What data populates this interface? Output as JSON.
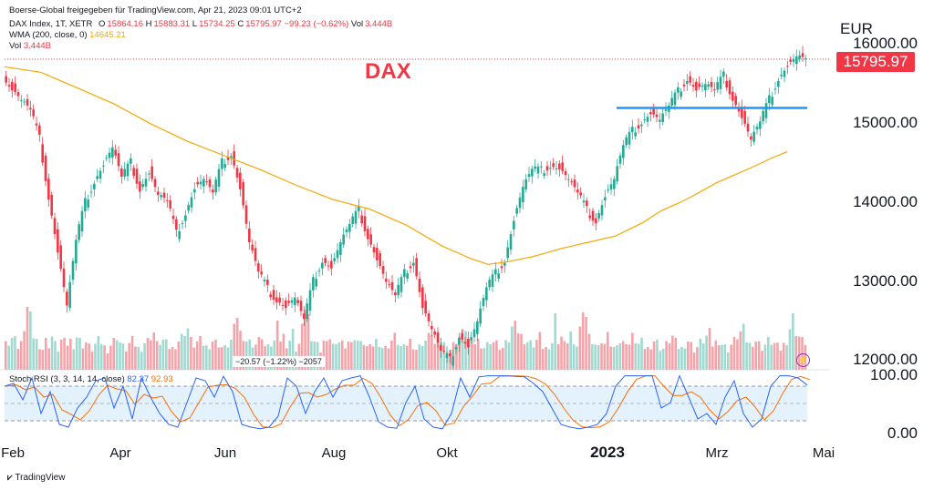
{
  "header": {
    "line1_prefix": "Boerse-Global freigegeben für TradingView.com, Apr 21, 2023 09:01 UTC+2",
    "symbol": "DAX Index, 1T, XETR",
    "o_label": "O",
    "o_value": "15864.16",
    "h_label": "H",
    "h_value": "15883.31",
    "l_label": "L",
    "l_value": "15734.25",
    "c_label": "C",
    "c_value": "15795.97",
    "change": "−99.23 (−0.62%)",
    "vol_label": "Vol",
    "vol_value": "3.444B",
    "wma_label": "WMA (200, close, 0)",
    "wma_value": "14645.21",
    "vol2_label": "Vol",
    "vol2_value": "3.444B",
    "stoch_label": "Stoch RSI (3, 3, 14, 14, close)",
    "stoch_k": "82.37",
    "stoch_d": "92.93"
  },
  "title_text": "DAX",
  "currency": "EUR",
  "price_tag": "15795.97",
  "hover_box": "−20.57 (−1.22%) −2057",
  "tv_logo": "TradingView",
  "colors": {
    "up": "#22ab94",
    "down": "#f23645",
    "wma": "#f7a600",
    "k": "#2962ff",
    "d": "#ff6d00",
    "hline": "#2196f3"
  },
  "icons": {
    "flash": "lightning-icon",
    "logo": "tradingview-logo-icon"
  },
  "chart_data": {
    "type": "candlestick",
    "price_axis_ticks": [
      "16000.00",
      "15000.00",
      "14000.00",
      "13000.00",
      "12000.00"
    ],
    "price_tick_values": [
      16000,
      15000,
      14000,
      13000,
      12000
    ],
    "rsi_axis_ticks": [
      "100.00",
      "0.00"
    ],
    "x_tick_labels": [
      "Feb",
      "Apr",
      "Jun",
      "Aug",
      "Okt",
      "2023",
      "Mrz",
      "Mai"
    ],
    "price_range": [
      11900,
      16300
    ],
    "last_close": 15795.97,
    "horizontal_line": 15200,
    "wma200_path": [
      [
        0,
        15720
      ],
      [
        40,
        15650
      ],
      [
        80,
        15450
      ],
      [
        120,
        15250
      ],
      [
        160,
        15000
      ],
      [
        200,
        14780
      ],
      [
        240,
        14600
      ],
      [
        280,
        14420
      ],
      [
        320,
        14220
      ],
      [
        360,
        14040
      ],
      [
        400,
        13920
      ],
      [
        440,
        13720
      ],
      [
        480,
        13450
      ],
      [
        510,
        13300
      ],
      [
        530,
        13220
      ],
      [
        550,
        13250
      ],
      [
        580,
        13320
      ],
      [
        610,
        13420
      ],
      [
        640,
        13500
      ],
      [
        670,
        13580
      ],
      [
        700,
        13750
      ],
      [
        720,
        13900
      ],
      [
        740,
        14000
      ],
      [
        760,
        14120
      ],
      [
        780,
        14250
      ],
      [
        800,
        14350
      ],
      [
        820,
        14450
      ],
      [
        840,
        14560
      ],
      [
        858,
        14645
      ]
    ],
    "price_path": [
      [
        0,
        15600
      ],
      [
        10,
        15450
      ],
      [
        20,
        15300
      ],
      [
        30,
        15150
      ],
      [
        40,
        14800
      ],
      [
        50,
        14100
      ],
      [
        60,
        13400
      ],
      [
        70,
        12700
      ],
      [
        80,
        13500
      ],
      [
        90,
        14000
      ],
      [
        100,
        14300
      ],
      [
        110,
        14500
      ],
      [
        120,
        14700
      ],
      [
        130,
        14300
      ],
      [
        140,
        14500
      ],
      [
        150,
        14200
      ],
      [
        160,
        14400
      ],
      [
        170,
        14100
      ],
      [
        180,
        14000
      ],
      [
        190,
        13600
      ],
      [
        200,
        13900
      ],
      [
        210,
        14200
      ],
      [
        220,
        14300
      ],
      [
        230,
        14100
      ],
      [
        240,
        14500
      ],
      [
        250,
        14650
      ],
      [
        260,
        14200
      ],
      [
        270,
        13500
      ],
      [
        280,
        13100
      ],
      [
        290,
        12900
      ],
      [
        300,
        12800
      ],
      [
        310,
        12700
      ],
      [
        320,
        12800
      ],
      [
        330,
        12500
      ],
      [
        340,
        13000
      ],
      [
        350,
        13300
      ],
      [
        360,
        13200
      ],
      [
        370,
        13500
      ],
      [
        380,
        13700
      ],
      [
        390,
        13900
      ],
      [
        400,
        13600
      ],
      [
        410,
        13300
      ],
      [
        420,
        13000
      ],
      [
        430,
        12800
      ],
      [
        440,
        13100
      ],
      [
        450,
        13300
      ],
      [
        460,
        12700
      ],
      [
        470,
        12400
      ],
      [
        480,
        12100
      ],
      [
        490,
        12000
      ],
      [
        500,
        12350
      ],
      [
        510,
        12200
      ],
      [
        520,
        12500
      ],
      [
        530,
        12900
      ],
      [
        540,
        13100
      ],
      [
        550,
        13300
      ],
      [
        560,
        13800
      ],
      [
        570,
        14200
      ],
      [
        580,
        14400
      ],
      [
        590,
        14400
      ],
      [
        600,
        14500
      ],
      [
        610,
        14450
      ],
      [
        620,
        14300
      ],
      [
        630,
        14100
      ],
      [
        640,
        13900
      ],
      [
        650,
        13800
      ],
      [
        660,
        14100
      ],
      [
        670,
        14300
      ],
      [
        680,
        14700
      ],
      [
        690,
        14900
      ],
      [
        700,
        15050
      ],
      [
        710,
        15150
      ],
      [
        720,
        15050
      ],
      [
        730,
        15200
      ],
      [
        740,
        15400
      ],
      [
        750,
        15600
      ],
      [
        760,
        15450
      ],
      [
        770,
        15500
      ],
      [
        780,
        15400
      ],
      [
        790,
        15600
      ],
      [
        800,
        15350
      ],
      [
        810,
        15100
      ],
      [
        820,
        14800
      ],
      [
        830,
        15000
      ],
      [
        840,
        15300
      ],
      [
        850,
        15600
      ],
      [
        860,
        15750
      ],
      [
        870,
        15850
      ],
      [
        880,
        15796
      ]
    ],
    "stoch_k_path": [
      [
        0,
        80
      ],
      [
        10,
        85
      ],
      [
        20,
        55
      ],
      [
        30,
        95
      ],
      [
        40,
        30
      ],
      [
        50,
        70
      ],
      [
        60,
        10
      ],
      [
        70,
        5
      ],
      [
        80,
        40
      ],
      [
        90,
        60
      ],
      [
        100,
        90
      ],
      [
        110,
        95
      ],
      [
        120,
        40
      ],
      [
        130,
        80
      ],
      [
        140,
        20
      ],
      [
        150,
        95
      ],
      [
        160,
        60
      ],
      [
        170,
        30
      ],
      [
        180,
        10
      ],
      [
        190,
        5
      ],
      [
        200,
        50
      ],
      [
        210,
        95
      ],
      [
        220,
        90
      ],
      [
        230,
        60
      ],
      [
        240,
        98
      ],
      [
        250,
        70
      ],
      [
        260,
        10
      ],
      [
        270,
        5
      ],
      [
        280,
        2
      ],
      [
        290,
        5
      ],
      [
        300,
        25
      ],
      [
        310,
        95
      ],
      [
        320,
        80
      ],
      [
        330,
        30
      ],
      [
        340,
        70
      ],
      [
        350,
        95
      ],
      [
        360,
        60
      ],
      [
        370,
        90
      ],
      [
        380,
        95
      ],
      [
        390,
        99
      ],
      [
        400,
        60
      ],
      [
        410,
        15
      ],
      [
        420,
        5
      ],
      [
        430,
        3
      ],
      [
        440,
        50
      ],
      [
        450,
        80
      ],
      [
        460,
        20
      ],
      [
        470,
        5
      ],
      [
        480,
        2
      ],
      [
        490,
        30
      ],
      [
        500,
        95
      ],
      [
        510,
        60
      ],
      [
        520,
        97
      ],
      [
        530,
        99
      ],
      [
        540,
        99
      ],
      [
        550,
        99
      ],
      [
        560,
        98
      ],
      [
        570,
        97
      ],
      [
        580,
        85
      ],
      [
        590,
        70
      ],
      [
        600,
        40
      ],
      [
        610,
        10
      ],
      [
        620,
        5
      ],
      [
        630,
        2
      ],
      [
        640,
        5
      ],
      [
        650,
        10
      ],
      [
        660,
        30
      ],
      [
        670,
        80
      ],
      [
        680,
        99
      ],
      [
        690,
        99
      ],
      [
        700,
        99
      ],
      [
        710,
        99
      ],
      [
        720,
        40
      ],
      [
        730,
        50
      ],
      [
        740,
        99
      ],
      [
        750,
        60
      ],
      [
        760,
        20
      ],
      [
        770,
        30
      ],
      [
        780,
        10
      ],
      [
        790,
        60
      ],
      [
        800,
        90
      ],
      [
        810,
        30
      ],
      [
        820,
        5
      ],
      [
        830,
        20
      ],
      [
        840,
        80
      ],
      [
        850,
        99
      ],
      [
        860,
        99
      ],
      [
        870,
        95
      ],
      [
        880,
        82
      ]
    ],
    "volume_bars": [
      35,
      25,
      30,
      40,
      20,
      25,
      45,
      70,
      60,
      35,
      30,
      25,
      20,
      30,
      25,
      35,
      25,
      20,
      30,
      28,
      26,
      30,
      25,
      35,
      30,
      25,
      28,
      22,
      20,
      25,
      30,
      28,
      22,
      20,
      25,
      30,
      35,
      28,
      22,
      20,
      26,
      30,
      25,
      20,
      22,
      28,
      30,
      35,
      40,
      25,
      28,
      30,
      26,
      22,
      20,
      25,
      30,
      35,
      40,
      45,
      30,
      25,
      28,
      30,
      26,
      22,
      25,
      30,
      28,
      26,
      22,
      20,
      25,
      30,
      45,
      60,
      40,
      35,
      30,
      28,
      26,
      25,
      30,
      35,
      22,
      20,
      25,
      28,
      60,
      30
    ]
  }
}
